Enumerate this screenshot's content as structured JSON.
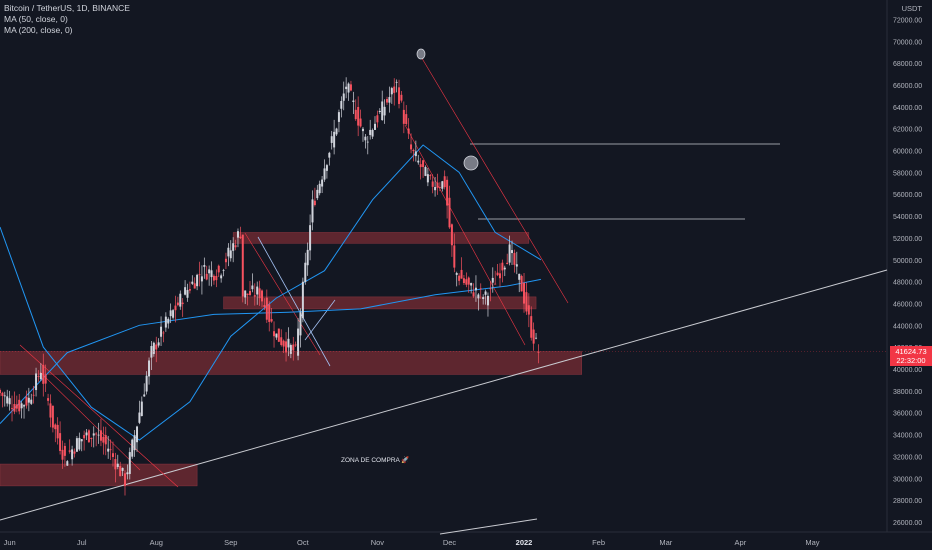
{
  "legend": {
    "symbol": "Bitcoin / TetherUS, 1D, BINANCE",
    "ma1": "MA (50, close, 0)",
    "ma2": "MA (200, close, 0)"
  },
  "price_axis_unit": "USDT",
  "last_price": {
    "price": "41624.73",
    "countdown": "22:32:00"
  },
  "zone_label": "ZONA DE COMPRA 🚀",
  "colors": {
    "background": "#131722",
    "up": "#d1d4dc",
    "down": "#f7525f",
    "ma": "#2196f3",
    "zone": "#7b2d35",
    "trendline": "#c9cbd1"
  },
  "chart_data": {
    "type": "candlestick",
    "title": "Bitcoin / TetherUS, 1D, BINANCE",
    "ylim": [
      25000,
      74500
    ],
    "y_ticks": [
      26000,
      28000,
      30000,
      32000,
      34000,
      36000,
      38000,
      40000,
      42000,
      44000,
      46000,
      48000,
      50000,
      52000,
      54000,
      56000,
      58000,
      60000,
      62000,
      64000,
      66000,
      68000,
      70000,
      72000
    ],
    "x_ticks": [
      "Jun",
      "Jul",
      "Aug",
      "Sep",
      "Oct",
      "Nov",
      "Dec",
      "2022",
      "Feb",
      "Mar",
      "Apr",
      "May"
    ],
    "x_range": [
      "2021-05-28",
      "2022-06-01"
    ],
    "close_series": [
      [
        "2021-05-28",
        38000
      ],
      [
        "2021-06-05",
        36500
      ],
      [
        "2021-06-10",
        37200
      ],
      [
        "2021-06-15",
        40000
      ],
      [
        "2021-06-20",
        35000
      ],
      [
        "2021-06-25",
        31800
      ],
      [
        "2021-07-01",
        33500
      ],
      [
        "2021-07-07",
        34200
      ],
      [
        "2021-07-13",
        32800
      ],
      [
        "2021-07-20",
        29800
      ],
      [
        "2021-07-25",
        35000
      ],
      [
        "2021-07-31",
        41500
      ],
      [
        "2021-08-07",
        44500
      ],
      [
        "2021-08-14",
        47000
      ],
      [
        "2021-08-21",
        49000
      ],
      [
        "2021-08-28",
        48800
      ],
      [
        "2021-09-06",
        52600
      ],
      [
        "2021-09-07",
        46800
      ],
      [
        "2021-09-14",
        47000
      ],
      [
        "2021-09-21",
        43000
      ],
      [
        "2021-09-29",
        41500
      ],
      [
        "2021-10-06",
        55000
      ],
      [
        "2021-10-15",
        61500
      ],
      [
        "2021-10-20",
        66000
      ],
      [
        "2021-10-28",
        61000
      ],
      [
        "2021-11-02",
        63000
      ],
      [
        "2021-11-10",
        66000
      ],
      [
        "2021-11-16",
        60000
      ],
      [
        "2021-11-24",
        57000
      ],
      [
        "2021-11-30",
        57000
      ],
      [
        "2021-12-04",
        49000
      ],
      [
        "2021-12-10",
        47500
      ],
      [
        "2021-12-17",
        46500
      ],
      [
        "2021-12-27",
        50800
      ],
      [
        "2022-01-01",
        47500
      ],
      [
        "2022-01-05",
        43500
      ],
      [
        "2022-01-08",
        41624.73
      ]
    ],
    "ma_50": [
      [
        "2021-05-28",
        53000
      ],
      [
        "2021-06-15",
        42000
      ],
      [
        "2021-07-05",
        36500
      ],
      [
        "2021-07-25",
        33500
      ],
      [
        "2021-08-15",
        37000
      ],
      [
        "2021-09-01",
        43000
      ],
      [
        "2021-09-20",
        46500
      ],
      [
        "2021-10-10",
        49000
      ],
      [
        "2021-10-30",
        55500
      ],
      [
        "2021-11-20",
        60500
      ],
      [
        "2021-12-05",
        58000
      ],
      [
        "2021-12-20",
        52500
      ],
      [
        "2022-01-08",
        50000
      ]
    ],
    "ma_200": [
      [
        "2021-05-28",
        35000
      ],
      [
        "2021-06-25",
        41500
      ],
      [
        "2021-07-25",
        44000
      ],
      [
        "2021-08-25",
        45000
      ],
      [
        "2021-09-25",
        45200
      ],
      [
        "2021-10-25",
        45500
      ],
      [
        "2021-11-25",
        46800
      ],
      [
        "2021-12-25",
        47600
      ],
      [
        "2022-01-08",
        48200
      ]
    ],
    "zones": [
      {
        "from": "2021-05-28",
        "to": "2022-01-25",
        "low": 39500,
        "high": 41600
      },
      {
        "from": "2021-09-02",
        "to": "2022-01-03",
        "low": 51500,
        "high": 52500
      },
      {
        "from": "2021-08-29",
        "to": "2022-01-06",
        "low": 45500,
        "high": 46600
      },
      {
        "from": "2021-05-28",
        "to": "2021-08-18",
        "low": 29300,
        "high": 31300
      }
    ]
  }
}
